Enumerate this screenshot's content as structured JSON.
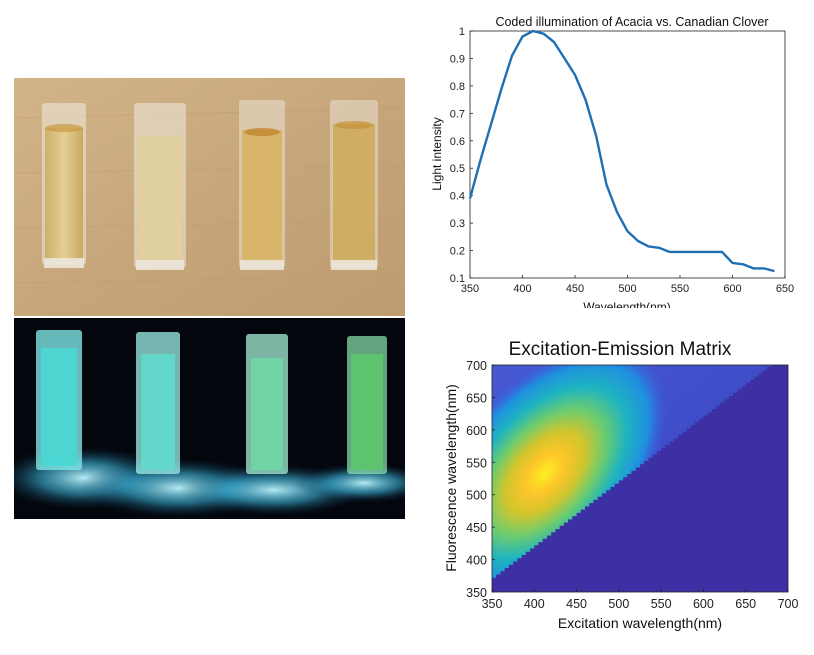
{
  "colors": {
    "line": "#1f6fb5",
    "eem_background": "#3d2fa4",
    "eem_peak": "#fcef23"
  },
  "photos": {
    "top": {
      "subject": "four cuvettes of honey solution under daylight",
      "liquid_color": "#d9bf7a",
      "background": "#c9aa80"
    },
    "bottom": {
      "subject": "four cuvettes fluorescing under UV illumination",
      "glow_color": "#3de0f0",
      "background": "#03060c"
    }
  },
  "chart_data": [
    {
      "type": "line",
      "title": "Coded illumination of Acacia vs. Canadian Clover",
      "xlabel": "Wavelength(nm)",
      "ylabel": "Light intensity",
      "xlim": [
        350,
        650
      ],
      "ylim": [
        0.1,
        1
      ],
      "xticks": [
        350,
        400,
        450,
        500,
        550,
        600,
        650
      ],
      "yticks": [
        0.1,
        0.2,
        0.3,
        0.4,
        0.5,
        0.6,
        0.7,
        0.8,
        0.9,
        1
      ],
      "grid": false,
      "series": [
        {
          "x": [
            350,
            360,
            370,
            380,
            390,
            400,
            410,
            420,
            430,
            440,
            450,
            460,
            470,
            480,
            490,
            500,
            510,
            520,
            530,
            540,
            550,
            560,
            570,
            580,
            590,
            600,
            610,
            620,
            630,
            640
          ],
          "y": [
            0.39,
            0.53,
            0.66,
            0.79,
            0.91,
            0.98,
            1.0,
            0.99,
            0.96,
            0.9,
            0.84,
            0.75,
            0.62,
            0.44,
            0.34,
            0.27,
            0.235,
            0.215,
            0.21,
            0.195,
            0.195,
            0.195,
            0.195,
            0.195,
            0.195,
            0.155,
            0.15,
            0.135,
            0.135,
            0.125
          ]
        }
      ]
    },
    {
      "type": "heatmap",
      "title": "Excitation-Emission Matrix",
      "xlabel": "Excitation wavelength(nm)",
      "ylabel": "Fluorescence wavelength(nm)",
      "xlim": [
        350,
        700
      ],
      "ylim": [
        350,
        700
      ],
      "xticks": [
        350,
        400,
        450,
        500,
        550,
        600,
        650,
        700
      ],
      "yticks": [
        350,
        400,
        450,
        500,
        550,
        600,
        650,
        700
      ],
      "peak": {
        "excitation": 435,
        "emission": 525
      },
      "masked_region": "emission below excitation"
    }
  ]
}
